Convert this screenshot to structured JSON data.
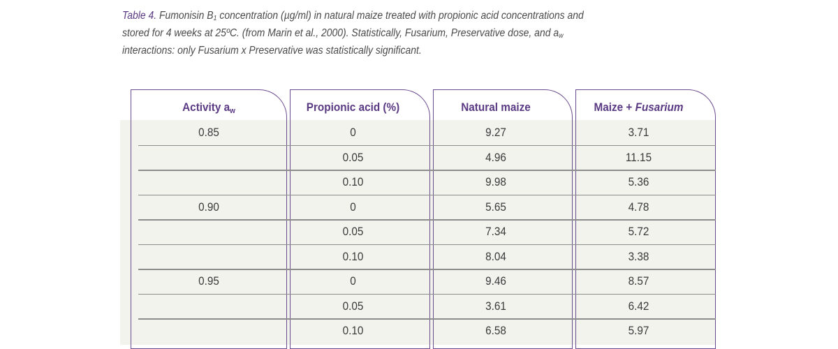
{
  "caption": {
    "label": "Table 4.",
    "text_a": " Fumonisin B",
    "sub_1": "1",
    "text_b": " concentration (µg/ml) in natural maize treated with propionic acid concentrations and stored for 4 weeks at 25ºC. (from Marin et al., 2000). Statistically, Fusarium, Preservative dose, and a",
    "sub_w": "w",
    "text_c": " interactions: only Fusarium x Preservative was statistically significant."
  },
  "headers": {
    "activity": "Activity a",
    "activity_sub": "w",
    "propionic": "Propionic acid (%)",
    "natural": "Natural maize",
    "maize_plus": "Maize + ",
    "fusarium": "Fusarium"
  },
  "rows": [
    {
      "activity": "0.85",
      "propionic": "0",
      "natural": "9.27",
      "fusarium": "3.71"
    },
    {
      "activity": "",
      "propionic": "0.05",
      "natural": "4.96",
      "fusarium": "11.15"
    },
    {
      "activity": "",
      "propionic": "0.10",
      "natural": "9.98",
      "fusarium": "5.36"
    },
    {
      "activity": "0.90",
      "propionic": "0",
      "natural": "5.65",
      "fusarium": "4.78"
    },
    {
      "activity": "",
      "propionic": "0.05",
      "natural": "7.34",
      "fusarium": "5.72"
    },
    {
      "activity": "",
      "propionic": "0.10",
      "natural": "8.04",
      "fusarium": "3.38"
    },
    {
      "activity": "0.95",
      "propionic": "0",
      "natural": "9.46",
      "fusarium": "8.57"
    },
    {
      "activity": "",
      "propionic": "0.05",
      "natural": "3.61",
      "fusarium": "6.42"
    },
    {
      "activity": "",
      "propionic": "0.10",
      "natural": "6.58",
      "fusarium": "5.97"
    }
  ]
}
